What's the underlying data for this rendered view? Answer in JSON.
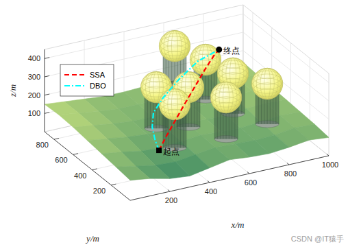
{
  "chart_data": {
    "type": "line3d",
    "xlabel": "x/m",
    "ylabel": "y/m",
    "zlabel": "z/m",
    "xlim": [
      0,
      1000
    ],
    "ylim": [
      0,
      900
    ],
    "zlim": [
      0,
      450
    ],
    "xticks": [
      200,
      400,
      600,
      800,
      1000
    ],
    "yticks": [
      200,
      400,
      600,
      800
    ],
    "zticks": [
      100,
      200,
      300,
      400
    ],
    "grid": true,
    "legend": "northwest",
    "series": [
      {
        "name": "SSA",
        "color": "#ff0000",
        "line_style": "dashed",
        "x": [
          260,
          320,
          390,
          460,
          540,
          620,
          690,
          730
        ],
        "y": [
          240,
          290,
          340,
          390,
          450,
          510,
          560,
          590
        ],
        "z": [
          110,
          150,
          200,
          250,
          300,
          350,
          390,
          400
        ]
      },
      {
        "name": "DBO",
        "color": "#00ffff",
        "line_style": "dashdot",
        "x": [
          260,
          250,
          250,
          280,
          360,
          470,
          600,
          730
        ],
        "y": [
          240,
          260,
          290,
          340,
          400,
          470,
          540,
          590
        ],
        "z": [
          110,
          160,
          220,
          270,
          310,
          350,
          390,
          400
        ]
      }
    ],
    "annotations": [
      {
        "text": "起点",
        "x": 260,
        "y": 240,
        "z": 110,
        "marker": "square"
      },
      {
        "text": "终点",
        "x": 730,
        "y": 590,
        "z": 400,
        "marker": "circle"
      }
    ],
    "obstacles": {
      "x": [
        636,
        690,
        731,
        362,
        488,
        350,
        586,
        815
      ],
      "y": [
        860,
        649,
        446,
        481,
        407,
        263,
        215,
        261
      ],
      "z": [
        330,
        330,
        330,
        330,
        330,
        330,
        330,
        330
      ],
      "r": [
        85,
        85,
        85,
        85,
        85,
        85,
        85,
        85
      ]
    },
    "terrain": {
      "x": [
        0,
        100,
        200,
        300,
        400,
        500,
        600,
        700,
        800,
        900,
        1000
      ],
      "y": [
        0,
        150,
        300,
        450,
        600,
        750,
        900
      ],
      "z": [
        [
          110,
          95,
          70,
          60,
          80,
          100,
          90,
          85,
          95,
          110,
          100
        ],
        [
          120,
          100,
          80,
          75,
          90,
          105,
          100,
          95,
          100,
          115,
          110
        ],
        [
          130,
          115,
          95,
          90,
          100,
          110,
          105,
          100,
          110,
          120,
          115
        ],
        [
          140,
          125,
          110,
          100,
          105,
          115,
          110,
          105,
          120,
          125,
          120
        ],
        [
          150,
          135,
          120,
          110,
          110,
          120,
          115,
          110,
          125,
          130,
          125
        ],
        [
          155,
          140,
          125,
          115,
          115,
          120,
          120,
          115,
          120,
          135,
          130
        ],
        [
          150,
          140,
          130,
          120,
          120,
          125,
          120,
          120,
          125,
          140,
          135
        ]
      ]
    },
    "watermark": "CSDN @IT猿手"
  }
}
